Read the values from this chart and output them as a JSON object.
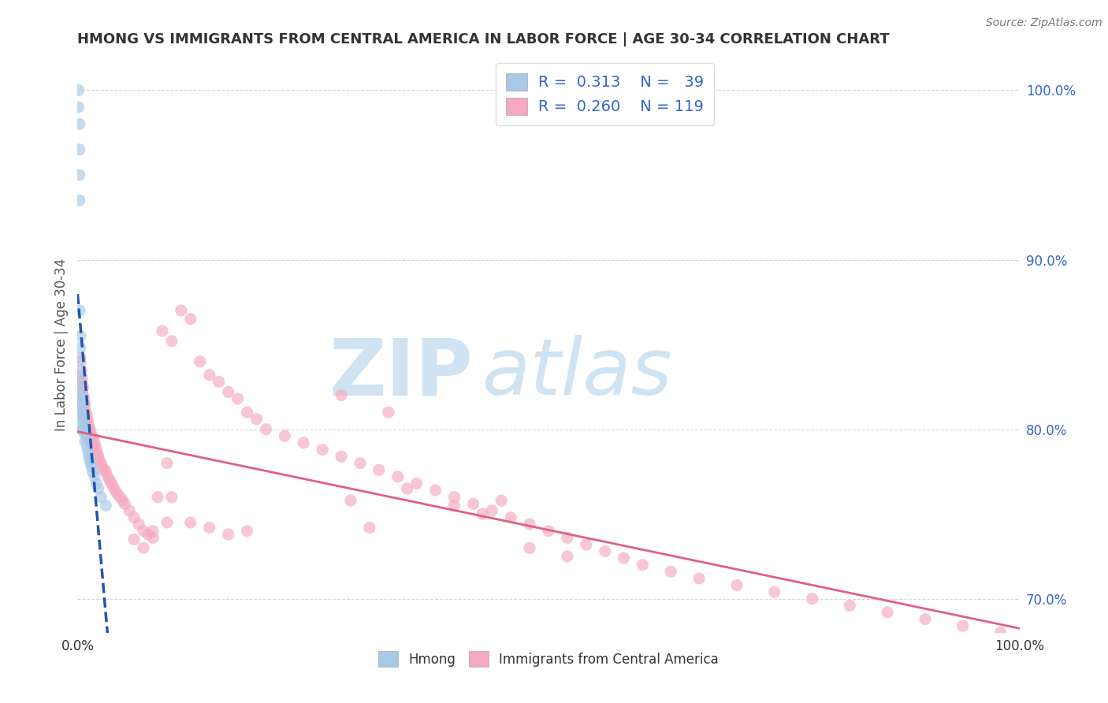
{
  "title": "HMONG VS IMMIGRANTS FROM CENTRAL AMERICA IN LABOR FORCE | AGE 30-34 CORRELATION CHART",
  "source": "Source: ZipAtlas.com",
  "ylabel": "In Labor Force | Age 30-34",
  "xlim": [
    0.0,
    1.0
  ],
  "ylim": [
    0.68,
    1.02
  ],
  "ytick_right": [
    0.7,
    0.8,
    0.9,
    1.0
  ],
  "ytick_right_labels": [
    "70.0%",
    "80.0%",
    "90.0%",
    "100.0%"
  ],
  "hmong_color": "#a8c8e8",
  "central_america_color": "#f5a8bf",
  "hmong_line_color": "#2255aa",
  "central_america_line_color": "#e06080",
  "watermark_color": "#c8dff0",
  "background_color": "#ffffff",
  "grid_color": "#cccccc",
  "hmong_x": [
    0.001,
    0.001,
    0.002,
    0.002,
    0.002,
    0.002,
    0.002,
    0.003,
    0.003,
    0.003,
    0.003,
    0.003,
    0.004,
    0.004,
    0.004,
    0.004,
    0.005,
    0.005,
    0.005,
    0.006,
    0.006,
    0.007,
    0.007,
    0.008,
    0.008,
    0.009,
    0.01,
    0.01,
    0.011,
    0.012,
    0.013,
    0.014,
    0.015,
    0.016,
    0.018,
    0.02,
    0.022,
    0.025,
    0.03
  ],
  "hmong_y": [
    1.0,
    0.99,
    0.98,
    0.965,
    0.95,
    0.935,
    0.87,
    0.855,
    0.848,
    0.84,
    0.832,
    0.825,
    0.82,
    0.815,
    0.808,
    0.8,
    0.818,
    0.812,
    0.805,
    0.808,
    0.8,
    0.805,
    0.798,
    0.8,
    0.793,
    0.798,
    0.795,
    0.79,
    0.787,
    0.784,
    0.782,
    0.78,
    0.778,
    0.775,
    0.772,
    0.768,
    0.765,
    0.76,
    0.755
  ],
  "ca_x": [
    0.003,
    0.004,
    0.004,
    0.005,
    0.005,
    0.005,
    0.006,
    0.006,
    0.006,
    0.007,
    0.007,
    0.007,
    0.008,
    0.008,
    0.008,
    0.009,
    0.009,
    0.01,
    0.01,
    0.01,
    0.011,
    0.011,
    0.012,
    0.012,
    0.013,
    0.013,
    0.014,
    0.015,
    0.015,
    0.016,
    0.017,
    0.018,
    0.019,
    0.02,
    0.021,
    0.022,
    0.023,
    0.025,
    0.026,
    0.028,
    0.03,
    0.032,
    0.034,
    0.036,
    0.038,
    0.04,
    0.042,
    0.045,
    0.048,
    0.05,
    0.055,
    0.06,
    0.065,
    0.07,
    0.075,
    0.08,
    0.085,
    0.09,
    0.095,
    0.1,
    0.11,
    0.12,
    0.13,
    0.14,
    0.15,
    0.16,
    0.17,
    0.18,
    0.19,
    0.2,
    0.22,
    0.24,
    0.26,
    0.28,
    0.3,
    0.32,
    0.34,
    0.36,
    0.38,
    0.4,
    0.42,
    0.44,
    0.46,
    0.48,
    0.5,
    0.52,
    0.54,
    0.56,
    0.58,
    0.6,
    0.63,
    0.66,
    0.7,
    0.74,
    0.78,
    0.82,
    0.86,
    0.9,
    0.94,
    0.98,
    0.43,
    0.28,
    0.33,
    0.48,
    0.52,
    0.4,
    0.35,
    0.29,
    0.31,
    0.45,
    0.1,
    0.08,
    0.06,
    0.095,
    0.07,
    0.12,
    0.14,
    0.16,
    0.18
  ],
  "ca_y": [
    0.842,
    0.835,
    0.828,
    0.83,
    0.822,
    0.815,
    0.825,
    0.82,
    0.812,
    0.818,
    0.812,
    0.808,
    0.815,
    0.808,
    0.802,
    0.81,
    0.805,
    0.808,
    0.802,
    0.798,
    0.805,
    0.8,
    0.802,
    0.798,
    0.8,
    0.795,
    0.798,
    0.796,
    0.792,
    0.79,
    0.795,
    0.792,
    0.79,
    0.788,
    0.786,
    0.784,
    0.782,
    0.78,
    0.778,
    0.776,
    0.775,
    0.772,
    0.77,
    0.768,
    0.766,
    0.764,
    0.762,
    0.76,
    0.758,
    0.756,
    0.752,
    0.748,
    0.744,
    0.74,
    0.738,
    0.736,
    0.76,
    0.858,
    0.78,
    0.852,
    0.87,
    0.865,
    0.84,
    0.832,
    0.828,
    0.822,
    0.818,
    0.81,
    0.806,
    0.8,
    0.796,
    0.792,
    0.788,
    0.784,
    0.78,
    0.776,
    0.772,
    0.768,
    0.764,
    0.76,
    0.756,
    0.752,
    0.748,
    0.744,
    0.74,
    0.736,
    0.732,
    0.728,
    0.724,
    0.72,
    0.716,
    0.712,
    0.708,
    0.704,
    0.7,
    0.696,
    0.692,
    0.688,
    0.684,
    0.68,
    0.75,
    0.82,
    0.81,
    0.73,
    0.725,
    0.755,
    0.765,
    0.758,
    0.742,
    0.758,
    0.76,
    0.74,
    0.735,
    0.745,
    0.73,
    0.745,
    0.742,
    0.738,
    0.74
  ]
}
